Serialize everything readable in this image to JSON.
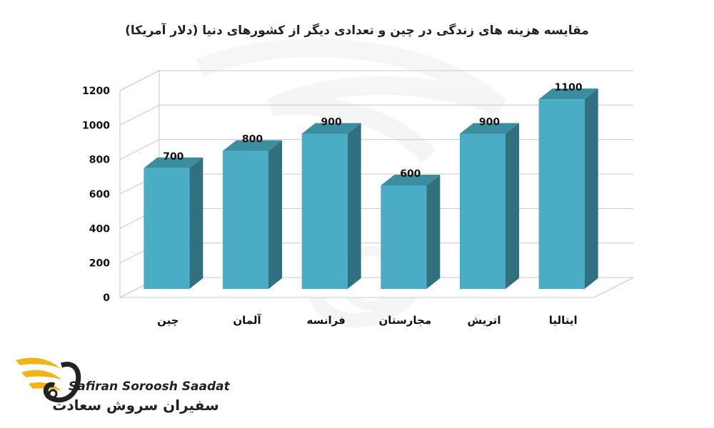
{
  "brand": {
    "name_en": "Safiran Soroosh Saadat",
    "name_fa": "سفیران سروش سعادت",
    "accent_color": "#f0b418"
  },
  "chart_data": {
    "type": "bar",
    "title": "مقایسه هزینه های زندگی در چین و تعدادی دیگر از کشورهای دنیا (دلار آمریکا)",
    "categories": [
      "چین",
      "آلمان",
      "فرانسه",
      "مجارستان",
      "اتریش",
      "ایتالیا"
    ],
    "values": [
      700,
      800,
      900,
      600,
      900,
      1100
    ],
    "data_labels": [
      "700",
      "800",
      "900",
      "600",
      "900",
      "1100"
    ],
    "y_ticks": [
      "0",
      "200",
      "400",
      "600",
      "800",
      "1000",
      "1200"
    ],
    "ylim": [
      0,
      1200
    ],
    "xlabel": "",
    "ylabel": "",
    "grid": true,
    "legend": "none",
    "bar_color": "#4bacc6"
  }
}
